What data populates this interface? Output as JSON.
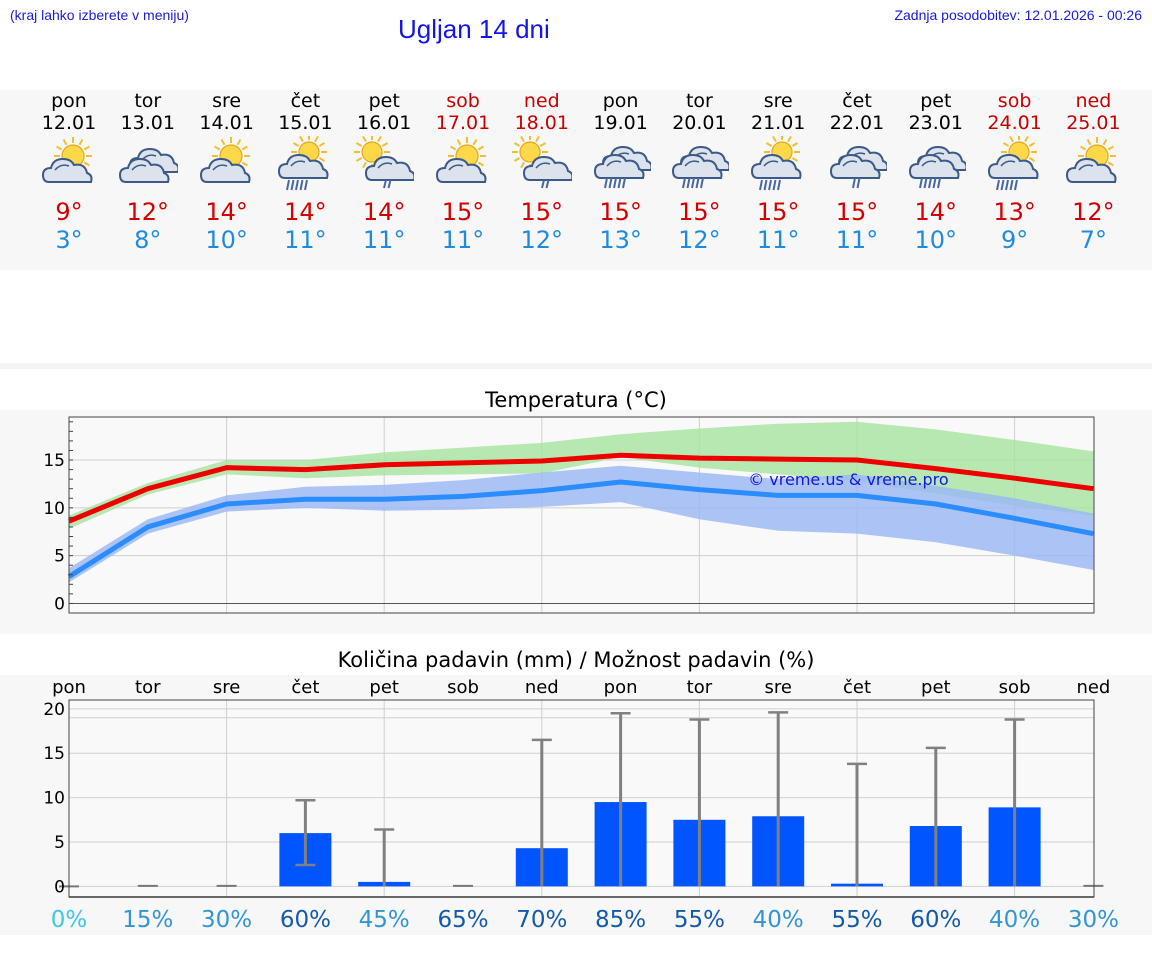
{
  "header": {
    "left_note": "(kraj lahko izberete v meniju)",
    "title": "Ugljan 14 dni",
    "updated": "Zadnja posodobitev: 12.01.2026 - 00:26"
  },
  "colors": {
    "weekday": "#000000",
    "weekend": "#c80000",
    "tmax": "#d20000",
    "tmin": "#1e8be0",
    "bar": "#0055ff"
  },
  "days": [
    {
      "name": "pon",
      "date": "12.01",
      "weekend": false,
      "icon": "sun-cloud-icon",
      "tmax": "9°",
      "tmin": "3°"
    },
    {
      "name": "tor",
      "date": "13.01",
      "weekend": false,
      "icon": "cloudy-icon",
      "tmax": "12°",
      "tmin": "8°"
    },
    {
      "name": "sre",
      "date": "14.01",
      "weekend": false,
      "icon": "sun-cloud-icon",
      "tmax": "14°",
      "tmin": "10°"
    },
    {
      "name": "čet",
      "date": "15.01",
      "weekend": false,
      "icon": "sun-cloud-rain-icon",
      "tmax": "14°",
      "tmin": "11°"
    },
    {
      "name": "pet",
      "date": "16.01",
      "weekend": false,
      "icon": "sun-cloud-drizzle-icon",
      "tmax": "14°",
      "tmin": "11°"
    },
    {
      "name": "sob",
      "date": "17.01",
      "weekend": true,
      "icon": "sun-cloud-icon",
      "tmax": "15°",
      "tmin": "11°"
    },
    {
      "name": "ned",
      "date": "18.01",
      "weekend": true,
      "icon": "sun-cloud-drizzle-icon",
      "tmax": "15°",
      "tmin": "12°"
    },
    {
      "name": "pon",
      "date": "19.01",
      "weekend": false,
      "icon": "cloud-rain-icon",
      "tmax": "15°",
      "tmin": "13°"
    },
    {
      "name": "tor",
      "date": "20.01",
      "weekend": false,
      "icon": "cloud-rain-icon",
      "tmax": "15°",
      "tmin": "12°"
    },
    {
      "name": "sre",
      "date": "21.01",
      "weekend": false,
      "icon": "sun-cloud-rain-icon",
      "tmax": "15°",
      "tmin": "11°"
    },
    {
      "name": "čet",
      "date": "22.01",
      "weekend": false,
      "icon": "cloud-drizzle-icon",
      "tmax": "15°",
      "tmin": "11°"
    },
    {
      "name": "pet",
      "date": "23.01",
      "weekend": false,
      "icon": "cloud-rain-icon",
      "tmax": "14°",
      "tmin": "10°"
    },
    {
      "name": "sob",
      "date": "24.01",
      "weekend": true,
      "icon": "sun-cloud-rain-icon",
      "tmax": "13°",
      "tmin": "9°"
    },
    {
      "name": "ned",
      "date": "25.01",
      "weekend": true,
      "icon": "sun-cloud-icon",
      "tmax": "12°",
      "tmin": "7°"
    }
  ],
  "chart_data": [
    {
      "type": "line",
      "title": "Temperatura (°C)",
      "xlabel": "",
      "ylabel": "",
      "ylim": [
        -1,
        19.5
      ],
      "yticks": [
        "0",
        "5",
        "10",
        "15"
      ],
      "ytick_values": [
        0,
        5,
        10,
        15
      ],
      "watermark": "© vreme.us & vreme.pro",
      "x": [
        0,
        1,
        2,
        3,
        4,
        5,
        6,
        7,
        8,
        9,
        10,
        11,
        12,
        13
      ],
      "series": [
        {
          "name": "Tmax",
          "color": "#ee0000",
          "values": [
            8.6,
            12.0,
            14.2,
            14.0,
            14.5,
            14.7,
            14.9,
            15.5,
            15.2,
            15.1,
            15.0,
            14.1,
            13.1,
            12.0
          ]
        },
        {
          "name": "Tmin",
          "color": "#2a8cff",
          "values": [
            2.8,
            8.0,
            10.4,
            10.9,
            10.9,
            11.2,
            11.8,
            12.7,
            11.9,
            11.3,
            11.3,
            10.4,
            8.9,
            7.3
          ]
        }
      ],
      "bands": [
        {
          "name": "Tmax range",
          "color": "#a6e4a0",
          "upper": [
            9.2,
            12.6,
            15.0,
            15.0,
            15.8,
            16.3,
            16.8,
            17.7,
            18.3,
            18.8,
            19.0,
            18.2,
            17.1,
            15.9
          ],
          "lower": [
            7.8,
            11.4,
            13.5,
            13.1,
            13.4,
            13.5,
            13.6,
            15.3,
            14.2,
            13.5,
            12.8,
            11.5,
            10.2,
            9.2
          ]
        },
        {
          "name": "Tmin range",
          "color": "#98b6f4",
          "upper": [
            3.7,
            8.8,
            11.3,
            12.2,
            12.4,
            12.9,
            13.7,
            14.4,
            13.7,
            13.0,
            13.5,
            12.3,
            11.0,
            9.4
          ],
          "lower": [
            2.2,
            7.3,
            9.6,
            10.0,
            9.7,
            9.8,
            10.1,
            10.6,
            8.8,
            7.6,
            7.3,
            6.4,
            5.0,
            3.5
          ]
        }
      ]
    },
    {
      "type": "bar",
      "title": "Količina padavin (mm) / Možnost padavin (%)",
      "xlabel": "",
      "ylabel": "",
      "ylim": [
        -1.2,
        21
      ],
      "yticks": [
        "0",
        "5",
        "10",
        "15",
        "20"
      ],
      "ytick_values": [
        0,
        5,
        10,
        15,
        20
      ],
      "categories": [
        "pon",
        "tor",
        "sre",
        "čet",
        "pet",
        "sob",
        "ned",
        "pon",
        "tor",
        "sre",
        "čet",
        "pet",
        "sob",
        "ned"
      ],
      "values": [
        0,
        0,
        0,
        6.0,
        0.5,
        0,
        4.3,
        9.5,
        7.5,
        7.9,
        0.3,
        6.8,
        8.9,
        0
      ],
      "error_low": [
        0,
        0,
        0,
        2.4,
        0,
        0,
        0,
        0,
        0,
        0,
        0,
        0,
        0,
        0
      ],
      "error_high": [
        0,
        0.05,
        0.05,
        9.7,
        6.4,
        0.05,
        16.5,
        19.5,
        18.8,
        19.6,
        13.8,
        15.6,
        18.8,
        0.05
      ],
      "probability": [
        "0%",
        "15%",
        "30%",
        "60%",
        "45%",
        "65%",
        "70%",
        "85%",
        "55%",
        "40%",
        "55%",
        "60%",
        "40%",
        "30%"
      ],
      "probability_colors": [
        "#3cc8e6",
        "#3296d2",
        "#3296d2",
        "#145aaa",
        "#3296d2",
        "#145aaa",
        "#145aaa",
        "#145aaa",
        "#145aaa",
        "#3296d2",
        "#145aaa",
        "#145aaa",
        "#3296d2",
        "#3296d2"
      ]
    }
  ]
}
